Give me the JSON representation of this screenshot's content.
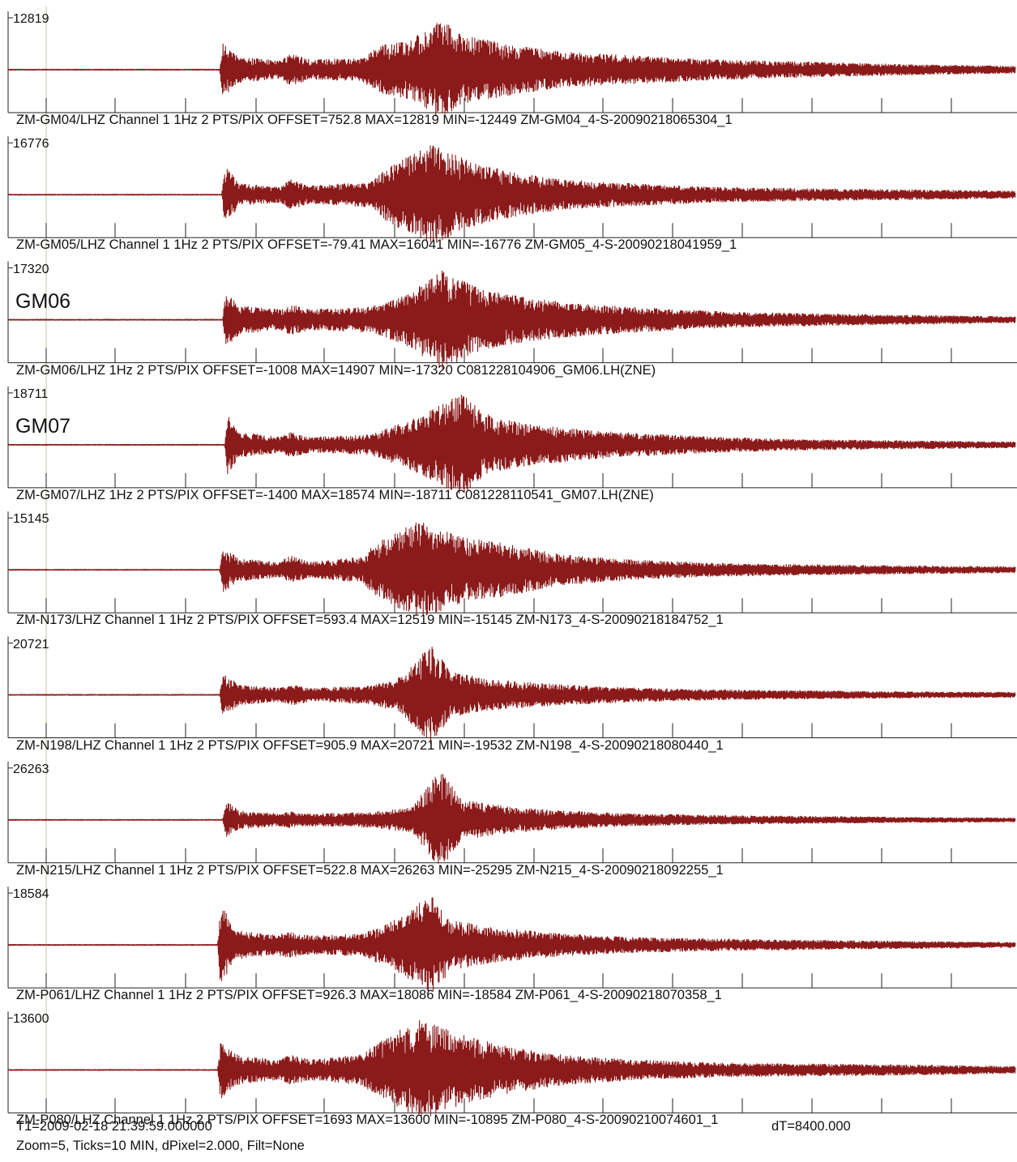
{
  "chart_data": {
    "type": "line",
    "description": "",
    "trace_color": "#8b1a1a",
    "traces": [
      {
        "peak_label": "12819",
        "station_tag": "",
        "info": "ZM-GM04/LHZ Channel 1 1Hz 2 PTS/PIX OFFSET=752.8 MAX=12819 MIN=-12449 ZM-GM04_4-S-20090218065304_1",
        "max": 12819,
        "min": -12449,
        "p_arrival": 0.213,
        "envelope": [
          [
            0.0,
            0.01
          ],
          [
            0.21,
            0.01
          ],
          [
            0.213,
            0.55
          ],
          [
            0.23,
            0.25
          ],
          [
            0.27,
            0.18
          ],
          [
            0.28,
            0.32
          ],
          [
            0.3,
            0.2
          ],
          [
            0.35,
            0.22
          ],
          [
            0.37,
            0.48
          ],
          [
            0.4,
            0.6
          ],
          [
            0.43,
            1.0
          ],
          [
            0.45,
            0.7
          ],
          [
            0.5,
            0.5
          ],
          [
            0.55,
            0.35
          ],
          [
            0.62,
            0.28
          ],
          [
            0.7,
            0.2
          ],
          [
            0.8,
            0.15
          ],
          [
            0.9,
            0.1
          ],
          [
            1.0,
            0.07
          ]
        ]
      },
      {
        "peak_label": "16776",
        "station_tag": "",
        "info": "ZM-GM05/LHZ Channel 1 1Hz 2 PTS/PIX OFFSET=-79.41 MAX=16041 MIN=-16776 ZM-GM05_4-S-20090218041959_1",
        "max": 16041,
        "min": -16776,
        "p_arrival": 0.215,
        "envelope": [
          [
            0.0,
            0.01
          ],
          [
            0.212,
            0.01
          ],
          [
            0.215,
            0.6
          ],
          [
            0.23,
            0.22
          ],
          [
            0.27,
            0.15
          ],
          [
            0.28,
            0.3
          ],
          [
            0.3,
            0.18
          ],
          [
            0.36,
            0.25
          ],
          [
            0.38,
            0.6
          ],
          [
            0.42,
            1.0
          ],
          [
            0.46,
            0.65
          ],
          [
            0.5,
            0.45
          ],
          [
            0.55,
            0.3
          ],
          [
            0.62,
            0.22
          ],
          [
            0.7,
            0.15
          ],
          [
            0.8,
            0.12
          ],
          [
            0.9,
            0.1
          ],
          [
            1.0,
            0.07
          ]
        ]
      },
      {
        "peak_label": "17320",
        "station_tag": "GM06",
        "info": "ZM-GM06/LHZ 1Hz 2 PTS/PIX OFFSET=-1008 MAX=14907 MIN=-17320 C081228104906_GM06.LH(ZNE)",
        "max": 14907,
        "min": -17320,
        "p_arrival": 0.216,
        "envelope": [
          [
            0.0,
            0.01
          ],
          [
            0.213,
            0.01
          ],
          [
            0.216,
            0.55
          ],
          [
            0.23,
            0.28
          ],
          [
            0.27,
            0.2
          ],
          [
            0.28,
            0.3
          ],
          [
            0.3,
            0.2
          ],
          [
            0.36,
            0.25
          ],
          [
            0.4,
            0.55
          ],
          [
            0.43,
            1.0
          ],
          [
            0.47,
            0.6
          ],
          [
            0.52,
            0.42
          ],
          [
            0.58,
            0.3
          ],
          [
            0.65,
            0.22
          ],
          [
            0.72,
            0.15
          ],
          [
            0.8,
            0.12
          ],
          [
            0.9,
            0.09
          ],
          [
            1.0,
            0.06
          ]
        ]
      },
      {
        "peak_label": "18711",
        "station_tag": "GM07",
        "info": "ZM-GM07/LHZ 1Hz 2 PTS/PIX OFFSET=-1400 MAX=18574 MIN=-18711 C081228110541_GM07.LH(ZNE)",
        "max": 18574,
        "min": -18711,
        "p_arrival": 0.218,
        "envelope": [
          [
            0.0,
            0.01
          ],
          [
            0.215,
            0.01
          ],
          [
            0.218,
            0.6
          ],
          [
            0.23,
            0.25
          ],
          [
            0.27,
            0.15
          ],
          [
            0.28,
            0.25
          ],
          [
            0.3,
            0.15
          ],
          [
            0.36,
            0.2
          ],
          [
            0.4,
            0.5
          ],
          [
            0.45,
            1.0
          ],
          [
            0.48,
            0.55
          ],
          [
            0.52,
            0.4
          ],
          [
            0.58,
            0.28
          ],
          [
            0.65,
            0.2
          ],
          [
            0.72,
            0.14
          ],
          [
            0.8,
            0.1
          ],
          [
            0.9,
            0.08
          ],
          [
            1.0,
            0.06
          ]
        ]
      },
      {
        "peak_label": "15145",
        "station_tag": "",
        "info": "ZM-N173/LHZ Channel 1 1Hz 2 PTS/PIX OFFSET=593.4 MAX=12519 MIN=-15145 ZM-N173_4-S-20090218184752_1",
        "max": 12519,
        "min": -15145,
        "p_arrival": 0.213,
        "envelope": [
          [
            0.0,
            0.01
          ],
          [
            0.21,
            0.01
          ],
          [
            0.213,
            0.45
          ],
          [
            0.23,
            0.22
          ],
          [
            0.27,
            0.15
          ],
          [
            0.28,
            0.28
          ],
          [
            0.3,
            0.15
          ],
          [
            0.35,
            0.25
          ],
          [
            0.37,
            0.6
          ],
          [
            0.41,
            1.0
          ],
          [
            0.45,
            0.65
          ],
          [
            0.5,
            0.5
          ],
          [
            0.55,
            0.3
          ],
          [
            0.62,
            0.2
          ],
          [
            0.7,
            0.13
          ],
          [
            0.8,
            0.1
          ],
          [
            0.9,
            0.08
          ],
          [
            1.0,
            0.06
          ]
        ]
      },
      {
        "peak_label": "20721",
        "station_tag": "",
        "info": "ZM-N198/LHZ Channel 1 1Hz 2 PTS/PIX OFFSET=905.9 MAX=20721 MIN=-19532 ZM-N198_4-S-20090218080440_1",
        "max": 20721,
        "min": -19532,
        "p_arrival": 0.213,
        "envelope": [
          [
            0.0,
            0.01
          ],
          [
            0.21,
            0.01
          ],
          [
            0.213,
            0.42
          ],
          [
            0.23,
            0.2
          ],
          [
            0.27,
            0.13
          ],
          [
            0.28,
            0.22
          ],
          [
            0.3,
            0.13
          ],
          [
            0.36,
            0.18
          ],
          [
            0.39,
            0.35
          ],
          [
            0.42,
            1.0
          ],
          [
            0.44,
            0.45
          ],
          [
            0.48,
            0.3
          ],
          [
            0.55,
            0.2
          ],
          [
            0.62,
            0.14
          ],
          [
            0.7,
            0.1
          ],
          [
            0.8,
            0.08
          ],
          [
            0.9,
            0.06
          ],
          [
            1.0,
            0.05
          ]
        ]
      },
      {
        "peak_label": "26263",
        "station_tag": "",
        "info": "ZM-N215/LHZ Channel 1 1Hz 2 PTS/PIX OFFSET=522.8 MAX=26263 MIN=-25295 ZM-N215_4-S-20090218092255_1",
        "max": 26263,
        "min": -25295,
        "p_arrival": 0.216,
        "envelope": [
          [
            0.0,
            0.01
          ],
          [
            0.213,
            0.01
          ],
          [
            0.216,
            0.38
          ],
          [
            0.23,
            0.18
          ],
          [
            0.27,
            0.12
          ],
          [
            0.28,
            0.16
          ],
          [
            0.3,
            0.12
          ],
          [
            0.36,
            0.15
          ],
          [
            0.4,
            0.25
          ],
          [
            0.43,
            1.0
          ],
          [
            0.45,
            0.4
          ],
          [
            0.5,
            0.25
          ],
          [
            0.55,
            0.18
          ],
          [
            0.62,
            0.12
          ],
          [
            0.7,
            0.09
          ],
          [
            0.8,
            0.07
          ],
          [
            0.9,
            0.05
          ],
          [
            1.0,
            0.04
          ]
        ]
      },
      {
        "peak_label": "18584",
        "station_tag": "",
        "info": "ZM-P061/LHZ Channel 1 1Hz 2 PTS/PIX OFFSET=926.3 MAX=18086 MIN=-18584 ZM-P061_4-S-20090218070358_1",
        "max": 18086,
        "min": -18584,
        "p_arrival": 0.211,
        "envelope": [
          [
            0.0,
            0.01
          ],
          [
            0.208,
            0.01
          ],
          [
            0.211,
            0.85
          ],
          [
            0.225,
            0.3
          ],
          [
            0.26,
            0.2
          ],
          [
            0.28,
            0.25
          ],
          [
            0.3,
            0.18
          ],
          [
            0.35,
            0.22
          ],
          [
            0.38,
            0.45
          ],
          [
            0.42,
            1.0
          ],
          [
            0.44,
            0.5
          ],
          [
            0.48,
            0.35
          ],
          [
            0.55,
            0.22
          ],
          [
            0.62,
            0.15
          ],
          [
            0.7,
            0.12
          ],
          [
            0.8,
            0.09
          ],
          [
            0.9,
            0.07
          ],
          [
            1.0,
            0.05
          ]
        ]
      },
      {
        "peak_label": "13600",
        "station_tag": "",
        "info": "ZM-P080/LHZ Channel 1 1Hz 2 PTS/PIX OFFSET=1693 MAX=13600 MIN=-10895 ZM-P080_4-S-20090210074601_1",
        "max": 13600,
        "min": -10895,
        "p_arrival": 0.211,
        "envelope": [
          [
            0.0,
            0.01
          ],
          [
            0.208,
            0.01
          ],
          [
            0.211,
            0.6
          ],
          [
            0.23,
            0.28
          ],
          [
            0.27,
            0.2
          ],
          [
            0.28,
            0.3
          ],
          [
            0.3,
            0.2
          ],
          [
            0.35,
            0.3
          ],
          [
            0.38,
            0.7
          ],
          [
            0.41,
            1.0
          ],
          [
            0.45,
            0.7
          ],
          [
            0.5,
            0.45
          ],
          [
            0.55,
            0.3
          ],
          [
            0.62,
            0.2
          ],
          [
            0.7,
            0.14
          ],
          [
            0.8,
            0.12
          ],
          [
            0.9,
            0.1
          ],
          [
            1.0,
            0.07
          ]
        ]
      }
    ]
  },
  "footer": {
    "t1": "T1=2009-02-18 21:39:59.000000",
    "dt": "dT=8400.000",
    "settings": "Zoom=5, Ticks=10 MIN, dPixel=2.000, Filt=None"
  }
}
